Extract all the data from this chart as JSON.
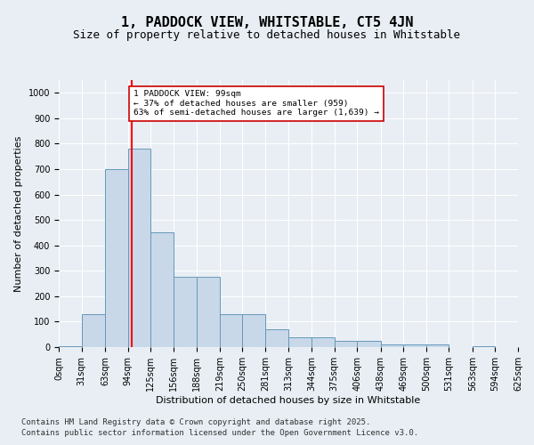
{
  "title": "1, PADDOCK VIEW, WHITSTABLE, CT5 4JN",
  "subtitle": "Size of property relative to detached houses in Whitstable",
  "xlabel": "Distribution of detached houses by size in Whitstable",
  "ylabel": "Number of detached properties",
  "bin_edges": [
    0,
    31,
    63,
    94,
    125,
    156,
    188,
    219,
    250,
    281,
    313,
    344,
    375,
    406,
    438,
    469,
    500,
    531,
    563,
    594,
    625
  ],
  "bar_heights": [
    5,
    130,
    700,
    780,
    450,
    275,
    275,
    130,
    130,
    70,
    40,
    40,
    25,
    25,
    10,
    10,
    10,
    0,
    5,
    0
  ],
  "bar_color": "#c8d8e8",
  "bar_edge_color": "#6699bb",
  "red_line_x": 99,
  "annotation_text": "1 PADDOCK VIEW: 99sqm\n← 37% of detached houses are smaller (959)\n63% of semi-detached houses are larger (1,639) →",
  "annotation_box_color": "#ffffff",
  "annotation_box_edge": "#cc0000",
  "annotation_text_color": "#000000",
  "ylim": [
    0,
    1050
  ],
  "yticks": [
    0,
    100,
    200,
    300,
    400,
    500,
    600,
    700,
    800,
    900,
    1000
  ],
  "background_color": "#e8eef4",
  "grid_color": "#ffffff",
  "footer_line1": "Contains HM Land Registry data © Crown copyright and database right 2025.",
  "footer_line2": "Contains public sector information licensed under the Open Government Licence v3.0.",
  "title_fontsize": 11,
  "subtitle_fontsize": 9,
  "axis_label_fontsize": 8,
  "tick_fontsize": 7,
  "footer_fontsize": 6.5
}
